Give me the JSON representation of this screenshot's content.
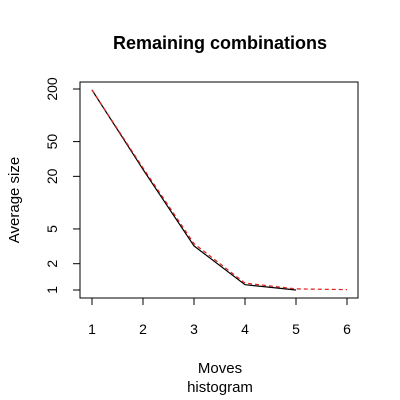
{
  "chart_data": {
    "type": "line",
    "title": "Remaining combinations",
    "xlabel": "Moves",
    "subtitle": "histogram",
    "ylabel": "Average size",
    "x_ticks": [
      1,
      2,
      3,
      4,
      5,
      6
    ],
    "y_ticks": [
      1,
      2,
      5,
      20,
      50,
      200
    ],
    "y_scale": "log",
    "xlim": [
      1,
      6
    ],
    "ylim": [
      1,
      200
    ],
    "grid": false,
    "series": [
      {
        "color": "#000000",
        "line_style": "solid",
        "x": [
          1,
          2,
          3,
          4,
          5
        ],
        "y": [
          195,
          24,
          3.2,
          1.15,
          1.0
        ]
      },
      {
        "color": "#e0201b",
        "line_style": "dashed",
        "x": [
          1,
          2,
          3,
          4,
          5,
          6
        ],
        "y": [
          195,
          25,
          3.4,
          1.2,
          1.03,
          1.01
        ]
      }
    ]
  }
}
